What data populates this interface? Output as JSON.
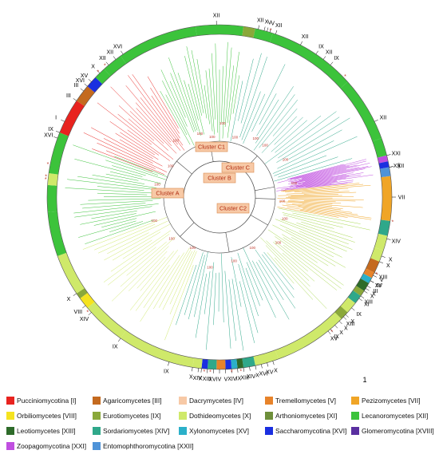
{
  "legend": [
    {
      "name": "Pucciniomycotina",
      "code": "[I]",
      "color": "#e8231f"
    },
    {
      "name": "Agaricomycetes",
      "code": "[III]",
      "color": "#c46a1f"
    },
    {
      "name": "Dacrymycetes",
      "code": "[IV]",
      "color": "#f7c9a6"
    },
    {
      "name": "Tremellomycetes",
      "code": "[V]",
      "color": "#e7832a"
    },
    {
      "name": "Pezizomycetes",
      "code": "[VII]",
      "color": "#f0a526"
    },
    {
      "name": "Orbiliomycetes",
      "code": "[VIII]",
      "color": "#f5e31f"
    },
    {
      "name": "Eurotiomycetes",
      "code": "[IX]",
      "color": "#8aa83a"
    },
    {
      "name": "Dothideomycetes",
      "code": "[X]",
      "color": "#cfe96a"
    },
    {
      "name": "Arthoniomycetes",
      "code": "[XI]",
      "color": "#6e8f3b"
    },
    {
      "name": "Lecanoromycetes",
      "code": "[XII]",
      "color": "#3cc33b"
    },
    {
      "name": "Leotiomycetes",
      "code": "[XIII]",
      "color": "#2e6b2a"
    },
    {
      "name": "Sordariomycetes",
      "code": "[XIV]",
      "color": "#2fa88a"
    },
    {
      "name": "Xylonomycetes",
      "code": "[XV]",
      "color": "#2bb0c9"
    },
    {
      "name": "Saccharomycotina",
      "code": "[XVI]",
      "color": "#1a2fe0"
    },
    {
      "name": "Glomeromycotina",
      "code": "[XVIII]",
      "color": "#5a2fa0"
    },
    {
      "name": "Zoopagomycotina",
      "code": "[XXI]",
      "color": "#c04fe0"
    },
    {
      "name": "Entomophthoromycotina",
      "code": "[XXII]",
      "color": "#4f93d8"
    }
  ],
  "clusters": [
    "Cluster C1",
    "Cluster C",
    "Cluster B",
    "Cluster A",
    "Cluster C2"
  ],
  "bootstrap_values": [
    "100",
    "100",
    "100",
    "100",
    "100",
    "100",
    "100",
    "100",
    "100",
    "100",
    "100",
    "100",
    "100",
    "100",
    "100",
    "100",
    "100",
    "100",
    "100",
    "100",
    "100"
  ],
  "ring_labels": [
    "XII",
    "XII",
    "XII",
    "XVI",
    "XII",
    "XV",
    "X",
    "XII",
    "V",
    "III",
    "XVI",
    "III",
    "I",
    "V",
    "X",
    "XII",
    "IX",
    "XII",
    "IX",
    "XII",
    "XXI",
    "XXII",
    "§",
    "IX",
    "XVI",
    "VII",
    "XIV",
    "X",
    "X",
    "XIII",
    "V",
    "XV",
    "III",
    "X",
    "XIII",
    "IV",
    "X",
    "XI",
    "IX",
    "X",
    "XIII",
    "X",
    "X",
    "IX",
    "XV",
    "XIV",
    "VIII",
    "X",
    "IX",
    "XIV",
    "X",
    "XIII",
    "XVI",
    "V",
    "V",
    "XIV",
    "IX",
    "XIII",
    "XIV",
    "X",
    "XVI",
    "XV",
    "X",
    "X",
    "IX"
  ],
  "scale_bar_label": "1",
  "asterisk": "*"
}
